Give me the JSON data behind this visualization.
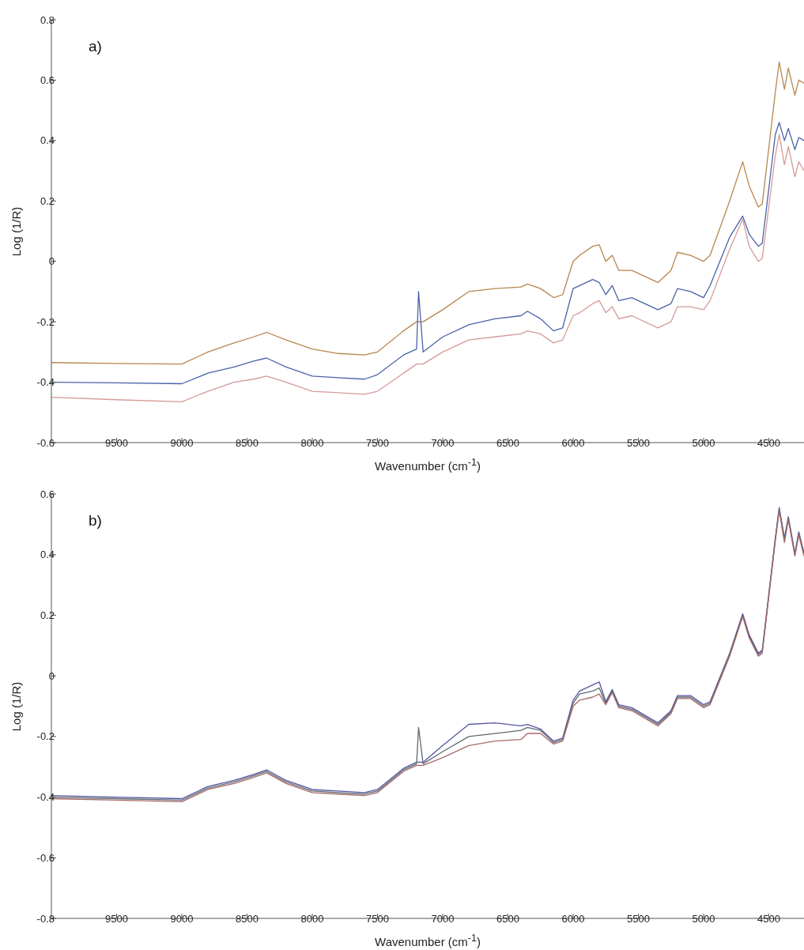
{
  "chart_data": [
    {
      "type": "line",
      "annotations": [
        "a)"
      ],
      "xlabel": "Wavenumber (cm$^{-1}$)",
      "ylabel": "Log (1/R)",
      "xlim": [
        10000,
        4230
      ],
      "xticks": [
        9500,
        9000,
        8500,
        8000,
        7500,
        7000,
        6500,
        6000,
        5500,
        5000,
        4500
      ],
      "ylim": [
        -0.6,
        0.8
      ],
      "yticks": [
        -0.6,
        -0.4,
        -0.2,
        0,
        0.2,
        0.4,
        0.6,
        0.8
      ],
      "x": [
        10000,
        9500,
        9000,
        8800,
        8600,
        8450,
        8350,
        8200,
        8000,
        7800,
        7600,
        7500,
        7300,
        7200,
        7185,
        7150,
        7000,
        6800,
        6600,
        6400,
        6350,
        6250,
        6150,
        6080,
        6000,
        5950,
        5850,
        5800,
        5750,
        5700,
        5650,
        5550,
        5350,
        5250,
        5200,
        5100,
        5000,
        4950,
        4800,
        4700,
        4650,
        4580,
        4550,
        4450,
        4420,
        4380,
        4350,
        4300,
        4270,
        4230
      ],
      "series": [
        {
          "color": "#b8864e",
          "values": [
            -0.335,
            -0.338,
            -0.34,
            -0.3,
            -0.27,
            -0.25,
            -0.235,
            -0.26,
            -0.29,
            -0.305,
            -0.31,
            -0.3,
            -0.23,
            -0.2,
            -0.2,
            -0.2,
            -0.16,
            -0.1,
            -0.09,
            -0.085,
            -0.075,
            -0.09,
            -0.12,
            -0.11,
            0.0,
            0.02,
            0.05,
            0.055,
            0.0,
            0.02,
            -0.03,
            -0.03,
            -0.07,
            -0.03,
            0.03,
            0.02,
            0.0,
            0.02,
            0.2,
            0.33,
            0.25,
            0.18,
            0.19,
            0.56,
            0.66,
            0.57,
            0.64,
            0.55,
            0.6,
            0.59
          ]
        },
        {
          "color": "#4a62a8",
          "values": [
            -0.4,
            -0.402,
            -0.405,
            -0.37,
            -0.35,
            -0.33,
            -0.32,
            -0.35,
            -0.38,
            -0.385,
            -0.39,
            -0.375,
            -0.31,
            -0.29,
            -0.1,
            -0.3,
            -0.25,
            -0.21,
            -0.19,
            -0.18,
            -0.165,
            -0.19,
            -0.23,
            -0.22,
            -0.09,
            -0.08,
            -0.06,
            -0.07,
            -0.11,
            -0.08,
            -0.13,
            -0.12,
            -0.16,
            -0.14,
            -0.09,
            -0.1,
            -0.12,
            -0.08,
            0.08,
            0.15,
            0.09,
            0.05,
            0.06,
            0.42,
            0.46,
            0.4,
            0.44,
            0.37,
            0.41,
            0.4
          ]
        },
        {
          "color": "#d49a9a",
          "values": [
            -0.45,
            -0.458,
            -0.465,
            -0.43,
            -0.4,
            -0.39,
            -0.38,
            -0.4,
            -0.43,
            -0.435,
            -0.44,
            -0.43,
            -0.37,
            -0.34,
            -0.34,
            -0.34,
            -0.3,
            -0.26,
            -0.25,
            -0.24,
            -0.23,
            -0.24,
            -0.27,
            -0.26,
            -0.18,
            -0.17,
            -0.14,
            -0.13,
            -0.17,
            -0.15,
            -0.19,
            -0.18,
            -0.22,
            -0.2,
            -0.15,
            -0.15,
            -0.16,
            -0.13,
            0.04,
            0.14,
            0.05,
            0.0,
            0.01,
            0.35,
            0.42,
            0.32,
            0.38,
            0.28,
            0.33,
            0.3
          ]
        }
      ]
    },
    {
      "type": "line",
      "annotations": [
        "b)"
      ],
      "xlabel": "Wavenumber (cm$^{-1}$)",
      "ylabel": "Log (1/R)",
      "xlim": [
        10000,
        4230
      ],
      "xticks": [
        9500,
        9000,
        8500,
        8000,
        7500,
        7000,
        6500,
        6000,
        5500,
        5000,
        4500
      ],
      "ylim": [
        -0.8,
        0.6
      ],
      "yticks": [
        -0.8,
        -0.6,
        -0.4,
        -0.2,
        0,
        0.2,
        0.4,
        0.6
      ],
      "x": [
        10000,
        9500,
        9000,
        8800,
        8600,
        8450,
        8350,
        8200,
        8000,
        7800,
        7600,
        7500,
        7300,
        7200,
        7185,
        7150,
        7000,
        6800,
        6600,
        6400,
        6350,
        6250,
        6150,
        6080,
        6000,
        5950,
        5850,
        5800,
        5750,
        5700,
        5650,
        5550,
        5350,
        5250,
        5200,
        5100,
        5000,
        4950,
        4800,
        4700,
        4650,
        4580,
        4550,
        4450,
        4420,
        4380,
        4350,
        4300,
        4270,
        4230
      ],
      "series": [
        {
          "color": "#5555a5",
          "values": [
            -0.395,
            -0.4,
            -0.405,
            -0.365,
            -0.345,
            -0.325,
            -0.31,
            -0.345,
            -0.375,
            -0.38,
            -0.385,
            -0.375,
            -0.305,
            -0.285,
            -0.285,
            -0.285,
            -0.23,
            -0.16,
            -0.155,
            -0.165,
            -0.16,
            -0.175,
            -0.215,
            -0.205,
            -0.08,
            -0.05,
            -0.03,
            -0.02,
            -0.085,
            -0.045,
            -0.095,
            -0.105,
            -0.155,
            -0.115,
            -0.065,
            -0.065,
            -0.095,
            -0.085,
            0.075,
            0.205,
            0.135,
            0.075,
            0.085,
            0.455,
            0.555,
            0.455,
            0.525,
            0.405,
            0.475,
            0.405
          ]
        },
        {
          "color": "#5f6b70",
          "values": [
            -0.4,
            -0.405,
            -0.41,
            -0.37,
            -0.35,
            -0.33,
            -0.315,
            -0.35,
            -0.38,
            -0.385,
            -0.39,
            -0.38,
            -0.31,
            -0.29,
            -0.17,
            -0.29,
            -0.25,
            -0.2,
            -0.19,
            -0.18,
            -0.17,
            -0.18,
            -0.22,
            -0.21,
            -0.09,
            -0.06,
            -0.05,
            -0.04,
            -0.09,
            -0.05,
            -0.1,
            -0.11,
            -0.16,
            -0.12,
            -0.07,
            -0.07,
            -0.1,
            -0.09,
            0.07,
            0.2,
            0.13,
            0.07,
            0.08,
            0.45,
            0.55,
            0.45,
            0.52,
            0.4,
            0.47,
            0.4
          ]
        },
        {
          "color": "#a86868",
          "values": [
            -0.405,
            -0.41,
            -0.415,
            -0.375,
            -0.355,
            -0.335,
            -0.32,
            -0.355,
            -0.385,
            -0.39,
            -0.395,
            -0.385,
            -0.315,
            -0.295,
            -0.295,
            -0.295,
            -0.27,
            -0.23,
            -0.215,
            -0.21,
            -0.19,
            -0.19,
            -0.225,
            -0.215,
            -0.1,
            -0.08,
            -0.07,
            -0.06,
            -0.095,
            -0.055,
            -0.105,
            -0.115,
            -0.165,
            -0.125,
            -0.075,
            -0.075,
            -0.105,
            -0.095,
            0.065,
            0.195,
            0.125,
            0.065,
            0.075,
            0.445,
            0.545,
            0.44,
            0.515,
            0.395,
            0.465,
            0.395
          ]
        }
      ]
    }
  ]
}
